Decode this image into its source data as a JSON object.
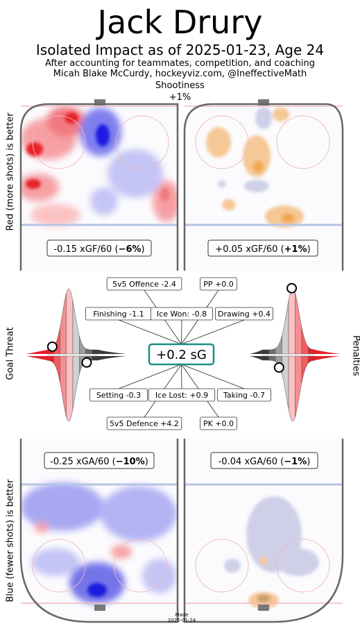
{
  "title": "Jack Drury",
  "subtitle": "Isolated Impact as of 2025-01-23, Age 24",
  "credit_line1": "After accounting for teammates, competition, and coaching",
  "credit_line2": "Micah Blake McCurdy, hockeyviz.com, @IneffectiveMath",
  "shootiness_label": "Shootiness",
  "shootiness_value": "+1%",
  "left_top_label": "Red (more shots) is better",
  "left_mid_label": "Goal Threat",
  "left_bottom_label": "Blue (fewer shots) is better",
  "right_mid_label": "Penalties",
  "made_label": "Made",
  "made_date": "2025-01-24",
  "colors": {
    "red": "#e8202a",
    "blue": "#1f1fe0",
    "orange": "#f5b060",
    "teal": "#1a8f86",
    "lavender": "#b9b9dd"
  },
  "chart_data": {
    "type": "heatmap",
    "panels": [
      {
        "name": "5v5 offence",
        "rate": "-0.15 xGF/60",
        "pct": "−6%"
      },
      {
        "name": "PP offence",
        "rate": "+0.05 xGF/60",
        "pct": "+1%"
      },
      {
        "name": "5v5 defence",
        "rate": "-0.25 xGA/60",
        "pct": "−10%"
      },
      {
        "name": "PK defence",
        "rate": "-0.04 xGA/60",
        "pct": "−1%"
      }
    ],
    "center": {
      "label": "+0.2 sG"
    },
    "components": [
      {
        "label": "5v5 Offence -2.4"
      },
      {
        "label": "PP +0.0"
      },
      {
        "label": "Finishing -1.1"
      },
      {
        "label": "Ice Won: -0.8"
      },
      {
        "label": "Drawing +0.4"
      },
      {
        "label": "Setting -0.3"
      },
      {
        "label": "Ice Lost: +0.9"
      },
      {
        "label": "Taking -0.7"
      },
      {
        "label": "5v5 Defence +4.2"
      },
      {
        "label": "PK +0.0"
      }
    ],
    "distributions": [
      {
        "name": "Finishing",
        "marker_percentile": 0.1
      },
      {
        "name": "Setting",
        "marker_percentile": 0.77
      },
      {
        "name": "Drawing",
        "marker_percentile": 0.56
      },
      {
        "name": "Taking",
        "marker_percentile": 0.32
      }
    ]
  }
}
